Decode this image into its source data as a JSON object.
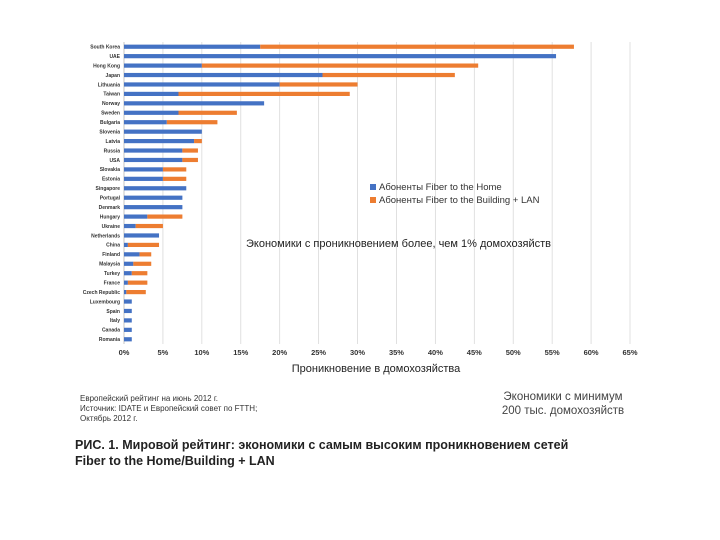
{
  "chart_data": {
    "type": "bar",
    "orientation": "horizontal",
    "stacked": true,
    "categories": [
      "South Korea",
      "UAE",
      "Hong Kong",
      "Japan",
      "Lithuania",
      "Taiwan",
      "Norway",
      "Sweden",
      "Bulgaria",
      "Slovenia",
      "Latvia",
      "Russia",
      "USA",
      "Slovakia",
      "Estonia",
      "Singapore",
      "Portugal",
      "Denmark",
      "Hungary",
      "Ukraine",
      "Netherlands",
      "China",
      "Finland",
      "Malaysia",
      "Turkey",
      "France",
      "Czech Republic",
      "Luxembourg",
      "Spain",
      "Italy",
      "Canada",
      "Romania"
    ],
    "series": [
      {
        "name": "Абоненты Fiber to the Home",
        "color": "#4472c4",
        "values": [
          17.5,
          55.5,
          10,
          25.5,
          20,
          7,
          18,
          7,
          5.5,
          10,
          9,
          7.5,
          7.5,
          5,
          5,
          8,
          7.5,
          7.5,
          3,
          1.5,
          4.5,
          0.5,
          2,
          1.2,
          1,
          0.5,
          0.3,
          1,
          1,
          1,
          1,
          1
        ]
      },
      {
        "name": "Абоненты Fiber to the Building + LAN",
        "color": "#ed7d31",
        "values": [
          40.3,
          0,
          35.5,
          17,
          10,
          22,
          0,
          7.5,
          6.5,
          0,
          1,
          2,
          2,
          3,
          3,
          0,
          0,
          0,
          4.5,
          3.5,
          0,
          4,
          1.5,
          2.3,
          2,
          2.5,
          2.5,
          0,
          0,
          0,
          0,
          0
        ]
      }
    ],
    "xlabel": "Проникновение в домохозяйства",
    "xlim": [
      0,
      65
    ],
    "xticks": [
      "0%",
      "5%",
      "10%",
      "15%",
      "20%",
      "25%",
      "30%",
      "35%",
      "40%",
      "45%",
      "50%",
      "55%",
      "60%",
      "65%"
    ],
    "grid": true,
    "legend_placement": "middle-right",
    "annotation": "Экономики с проникновением более, чем 1% домохозяйств"
  },
  "notes": {
    "source_line1": "Европейский рейтинг на июнь 2012 г.",
    "source_line2": "Источник: IDATE и Европейский совет по FTTH;",
    "source_line3": "Октябрь 2012 г.",
    "minimum_line1": "Экономики с минимум",
    "minimum_line2": "200 тыс. домохозяйств"
  },
  "caption": {
    "figure_number": "РИС. 1.",
    "line1": "Мировой рейтинг: экономики с самым высоким проникновением сетей",
    "line2": "Fiber to the Home/Building + LAN"
  }
}
